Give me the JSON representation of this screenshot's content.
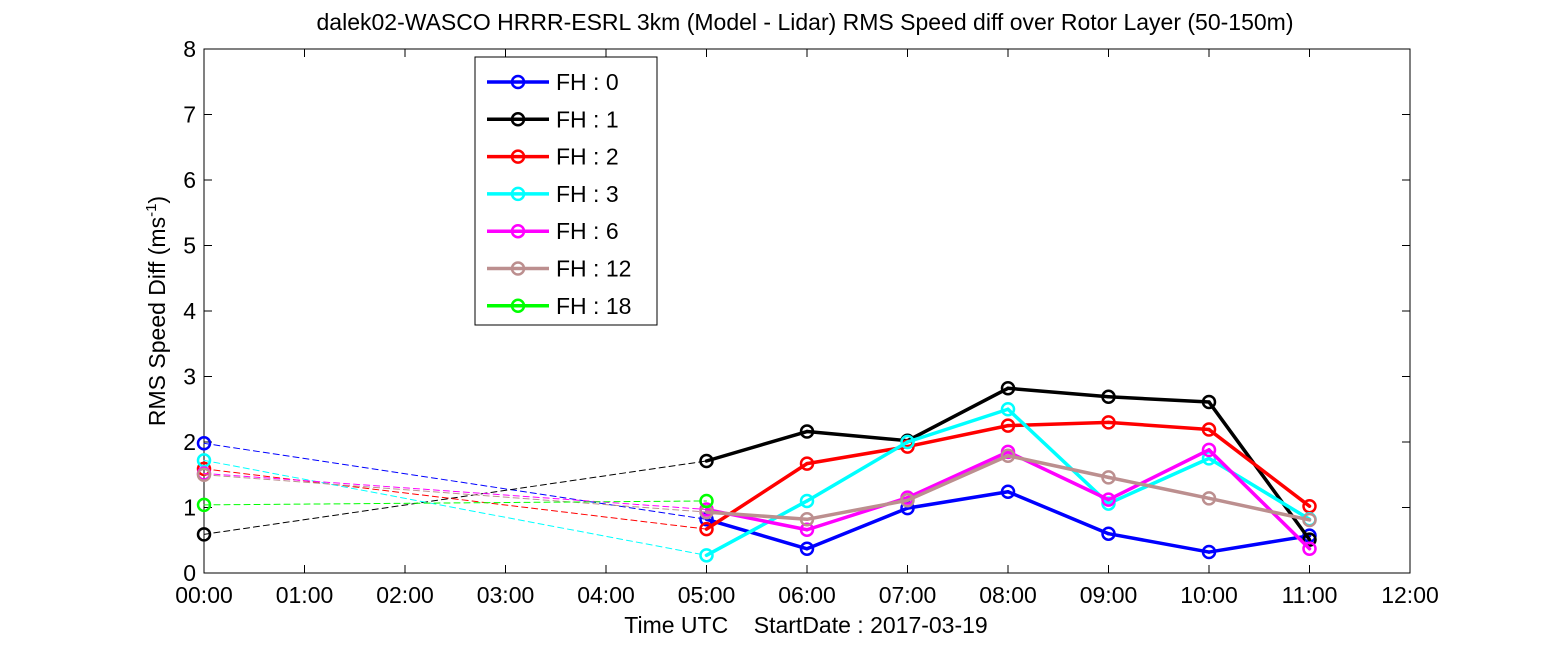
{
  "chart_data": {
    "type": "line",
    "title": "dalek02-WASCO HRRR-ESRL 3km (Model - Lidar) RMS Speed diff over Rotor Layer (50-150m)",
    "xlabel": "Time UTC    StartDate : 2017-03-19",
    "ylabel_main": "RMS Speed Diff (ms",
    "ylabel_sup": "-1",
    "ylabel_close": ")",
    "xlim": [
      0,
      12
    ],
    "ylim": [
      0,
      8
    ],
    "x_ticks": [
      0,
      1,
      2,
      3,
      4,
      5,
      6,
      7,
      8,
      9,
      10,
      11,
      12
    ],
    "x_tick_labels": [
      "00:00",
      "01:00",
      "02:00",
      "03:00",
      "04:00",
      "05:00",
      "06:00",
      "07:00",
      "08:00",
      "09:00",
      "10:00",
      "11:00",
      "12:00"
    ],
    "y_ticks": [
      0,
      1,
      2,
      3,
      4,
      5,
      6,
      7,
      8
    ],
    "y_tick_labels": [
      "0",
      "1",
      "2",
      "3",
      "4",
      "5",
      "6",
      "7",
      "8"
    ],
    "grid": false,
    "legend_position": "upper-left",
    "gap_style": "dashed-thin",
    "series": [
      {
        "name": "FH : 0",
        "color": "#0000ff",
        "x": [
          0,
          5,
          6,
          7,
          8,
          9,
          10,
          11
        ],
        "values": [
          1.98,
          0.82,
          0.37,
          0.99,
          1.24,
          0.6,
          0.32,
          0.57
        ]
      },
      {
        "name": "FH : 1",
        "color": "#000000",
        "x": [
          0,
          5,
          6,
          7,
          8,
          9,
          10,
          11
        ],
        "values": [
          0.59,
          1.71,
          2.16,
          2.02,
          2.82,
          2.69,
          2.61,
          0.51
        ]
      },
      {
        "name": "FH : 2",
        "color": "#ff0000",
        "x": [
          0,
          5,
          6,
          7,
          8,
          9,
          10,
          11
        ],
        "values": [
          1.59,
          0.67,
          1.67,
          1.93,
          2.25,
          2.3,
          2.19,
          1.02
        ]
      },
      {
        "name": "FH : 3",
        "color": "#00ffff",
        "x": [
          0,
          5,
          6,
          7,
          8,
          9,
          10,
          11
        ],
        "values": [
          1.72,
          0.27,
          1.1,
          2.0,
          2.5,
          1.06,
          1.75,
          0.82
        ]
      },
      {
        "name": "FH : 6",
        "color": "#ff00ff",
        "x": [
          0,
          5,
          6,
          7,
          8,
          9,
          10,
          11
        ],
        "values": [
          1.52,
          0.97,
          0.66,
          1.15,
          1.85,
          1.12,
          1.88,
          0.37
        ]
      },
      {
        "name": "FH : 12",
        "color": "#bc8f8f",
        "x": [
          0,
          5,
          6,
          7,
          8,
          9,
          10,
          11
        ],
        "values": [
          1.5,
          0.93,
          0.82,
          1.11,
          1.79,
          1.46,
          1.14,
          0.81
        ]
      },
      {
        "name": "FH : 18",
        "color": "#00ff00",
        "x": [
          0,
          5
        ],
        "values": [
          1.04,
          1.1
        ]
      }
    ]
  }
}
